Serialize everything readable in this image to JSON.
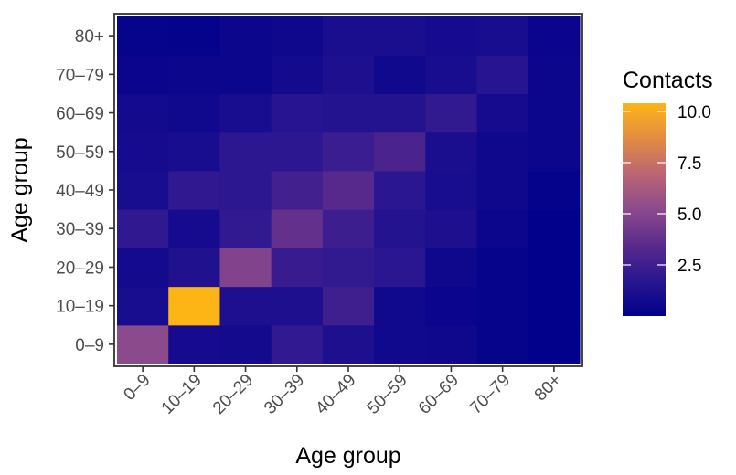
{
  "chart_data": {
    "type": "heatmap",
    "xlabel": "Age group",
    "ylabel": "Age group",
    "x_categories": [
      "0–9",
      "10–19",
      "20–29",
      "30–39",
      "40–49",
      "50–59",
      "60–69",
      "70–79",
      "80+"
    ],
    "y_categories": [
      "0–9",
      "10–19",
      "20–29",
      "30–39",
      "40–49",
      "50–59",
      "60–69",
      "70–79",
      "80+"
    ],
    "values": [
      [
        5.2,
        0.9,
        0.8,
        2.0,
        1.2,
        0.7,
        0.6,
        0.3,
        0.05
      ],
      [
        1.0,
        10.4,
        1.2,
        1.2,
        2.5,
        0.7,
        0.4,
        0.3,
        0.05
      ],
      [
        0.8,
        1.3,
        4.8,
        2.2,
        2.0,
        1.7,
        0.6,
        0.3,
        0.05
      ],
      [
        1.9,
        0.9,
        2.0,
        3.8,
        2.4,
        1.5,
        1.2,
        0.5,
        0.05
      ],
      [
        1.0,
        1.9,
        1.8,
        2.6,
        3.4,
        1.7,
        1.0,
        0.6,
        0.2
      ],
      [
        0.9,
        1.0,
        1.8,
        1.8,
        2.3,
        2.9,
        1.1,
        0.6,
        0.5
      ],
      [
        0.8,
        0.7,
        1.0,
        1.6,
        1.5,
        1.5,
        2.0,
        0.9,
        0.5
      ],
      [
        0.4,
        0.5,
        0.5,
        0.8,
        1.2,
        0.7,
        1.0,
        1.6,
        0.5
      ],
      [
        0.3,
        0.2,
        0.5,
        0.6,
        1.1,
        1.1,
        0.9,
        1.0,
        0.4
      ]
    ],
    "value_range": [
      0,
      10.4
    ],
    "colorscale": [
      "#00008b",
      "#2a1690",
      "#5a2a8c",
      "#8b4a8c",
      "#bb6474",
      "#e28c44",
      "#fdb515"
    ],
    "legend": {
      "title": "Contacts",
      "ticks": [
        2.5,
        5.0,
        7.5,
        10.0
      ],
      "tick_labels": [
        "2.5",
        "5.0",
        "7.5",
        "10.0"
      ],
      "position": "right"
    }
  }
}
